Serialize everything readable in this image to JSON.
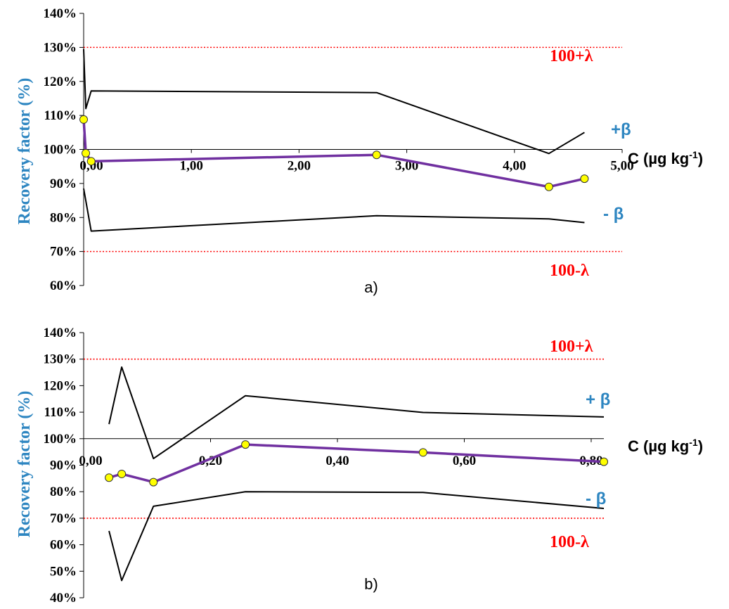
{
  "chart_data": [
    {
      "type": "line",
      "caption": "a)",
      "ylabel": "Recovery factor (%)",
      "xlabel": "C (µg kg",
      "xlabel_sup": "-1",
      "xlabel_close": ")",
      "ylim": [
        60,
        140
      ],
      "xlim": [
        0,
        5
      ],
      "x_crosses_y_at": 100,
      "y_ticks": [
        "140%",
        "130%",
        "120%",
        "110%",
        "100%",
        "90%",
        "80%",
        "70%",
        "60%"
      ],
      "y_tick_values": [
        140,
        130,
        120,
        110,
        100,
        90,
        80,
        70,
        60
      ],
      "x_ticks": [
        "0,00",
        "1,00",
        "2,00",
        "3,00",
        "4,00",
        "5,00"
      ],
      "x_tick_values": [
        0,
        1,
        2,
        3,
        4,
        5
      ],
      "limits": [
        {
          "label": "100+λ",
          "value": 130,
          "color": "#ff0000"
        },
        {
          "label": "100-λ",
          "value": 70,
          "color": "#ff0000"
        }
      ],
      "series": [
        {
          "name": "+β",
          "color": "#000000",
          "x": [
            0.0,
            0.02,
            0.07,
            2.72,
            4.32,
            4.65
          ],
          "y": [
            129.5,
            112,
            117.2,
            116.7,
            98.8,
            105
          ]
        },
        {
          "name": "- β",
          "color": "#000000",
          "x": [
            0.0,
            0.07,
            2.72,
            4.32,
            4.65
          ],
          "y": [
            88.5,
            76,
            80.5,
            79.6,
            78.5
          ]
        },
        {
          "name": "",
          "color": "#7030a0",
          "markers": true,
          "x": [
            0.0,
            0.02,
            0.07,
            2.72,
            4.32,
            4.65
          ],
          "y": [
            108.8,
            98.9,
            96.5,
            98.4,
            89,
            91.4
          ]
        }
      ]
    },
    {
      "type": "line",
      "caption": "b)",
      "ylabel": "Recovery factor (%)",
      "xlabel": "C (µg kg",
      "xlabel_sup": "-1",
      "xlabel_close": ")",
      "ylim": [
        40,
        140
      ],
      "xlim": [
        0,
        0.82
      ],
      "x_crosses_y_at": 100,
      "y_ticks": [
        "140%",
        "130%",
        "120%",
        "110%",
        "100%",
        "90%",
        "80%",
        "70%",
        "60%",
        "50%",
        "40%"
      ],
      "y_tick_values": [
        140,
        130,
        120,
        110,
        100,
        90,
        80,
        70,
        60,
        50,
        40
      ],
      "x_ticks": [
        "0,00",
        "0,20",
        "0,40",
        "0,60",
        "0,80"
      ],
      "x_tick_values": [
        0,
        0.2,
        0.4,
        0.6,
        0.8
      ],
      "limits": [
        {
          "label": "100+λ",
          "value": 130,
          "color": "#ff0000"
        },
        {
          "label": "100-λ",
          "value": 70,
          "color": "#ff0000"
        }
      ],
      "series": [
        {
          "name": "+ β",
          "color": "#000000",
          "x": [
            0.04,
            0.06,
            0.11,
            0.255,
            0.535,
            0.82
          ],
          "y": [
            105.5,
            127,
            92.5,
            116.2,
            109.9,
            108.2
          ]
        },
        {
          "name": "- β",
          "color": "#000000",
          "x": [
            0.04,
            0.06,
            0.11,
            0.255,
            0.535,
            0.82
          ],
          "y": [
            65.2,
            46.5,
            74.5,
            80,
            79.7,
            73.7
          ]
        },
        {
          "name": "",
          "color": "#7030a0",
          "markers": true,
          "x": [
            0.04,
            0.06,
            0.11,
            0.255,
            0.535,
            0.82
          ],
          "y": [
            85.3,
            86.7,
            83.6,
            97.8,
            94.8,
            91.3
          ]
        }
      ]
    }
  ]
}
